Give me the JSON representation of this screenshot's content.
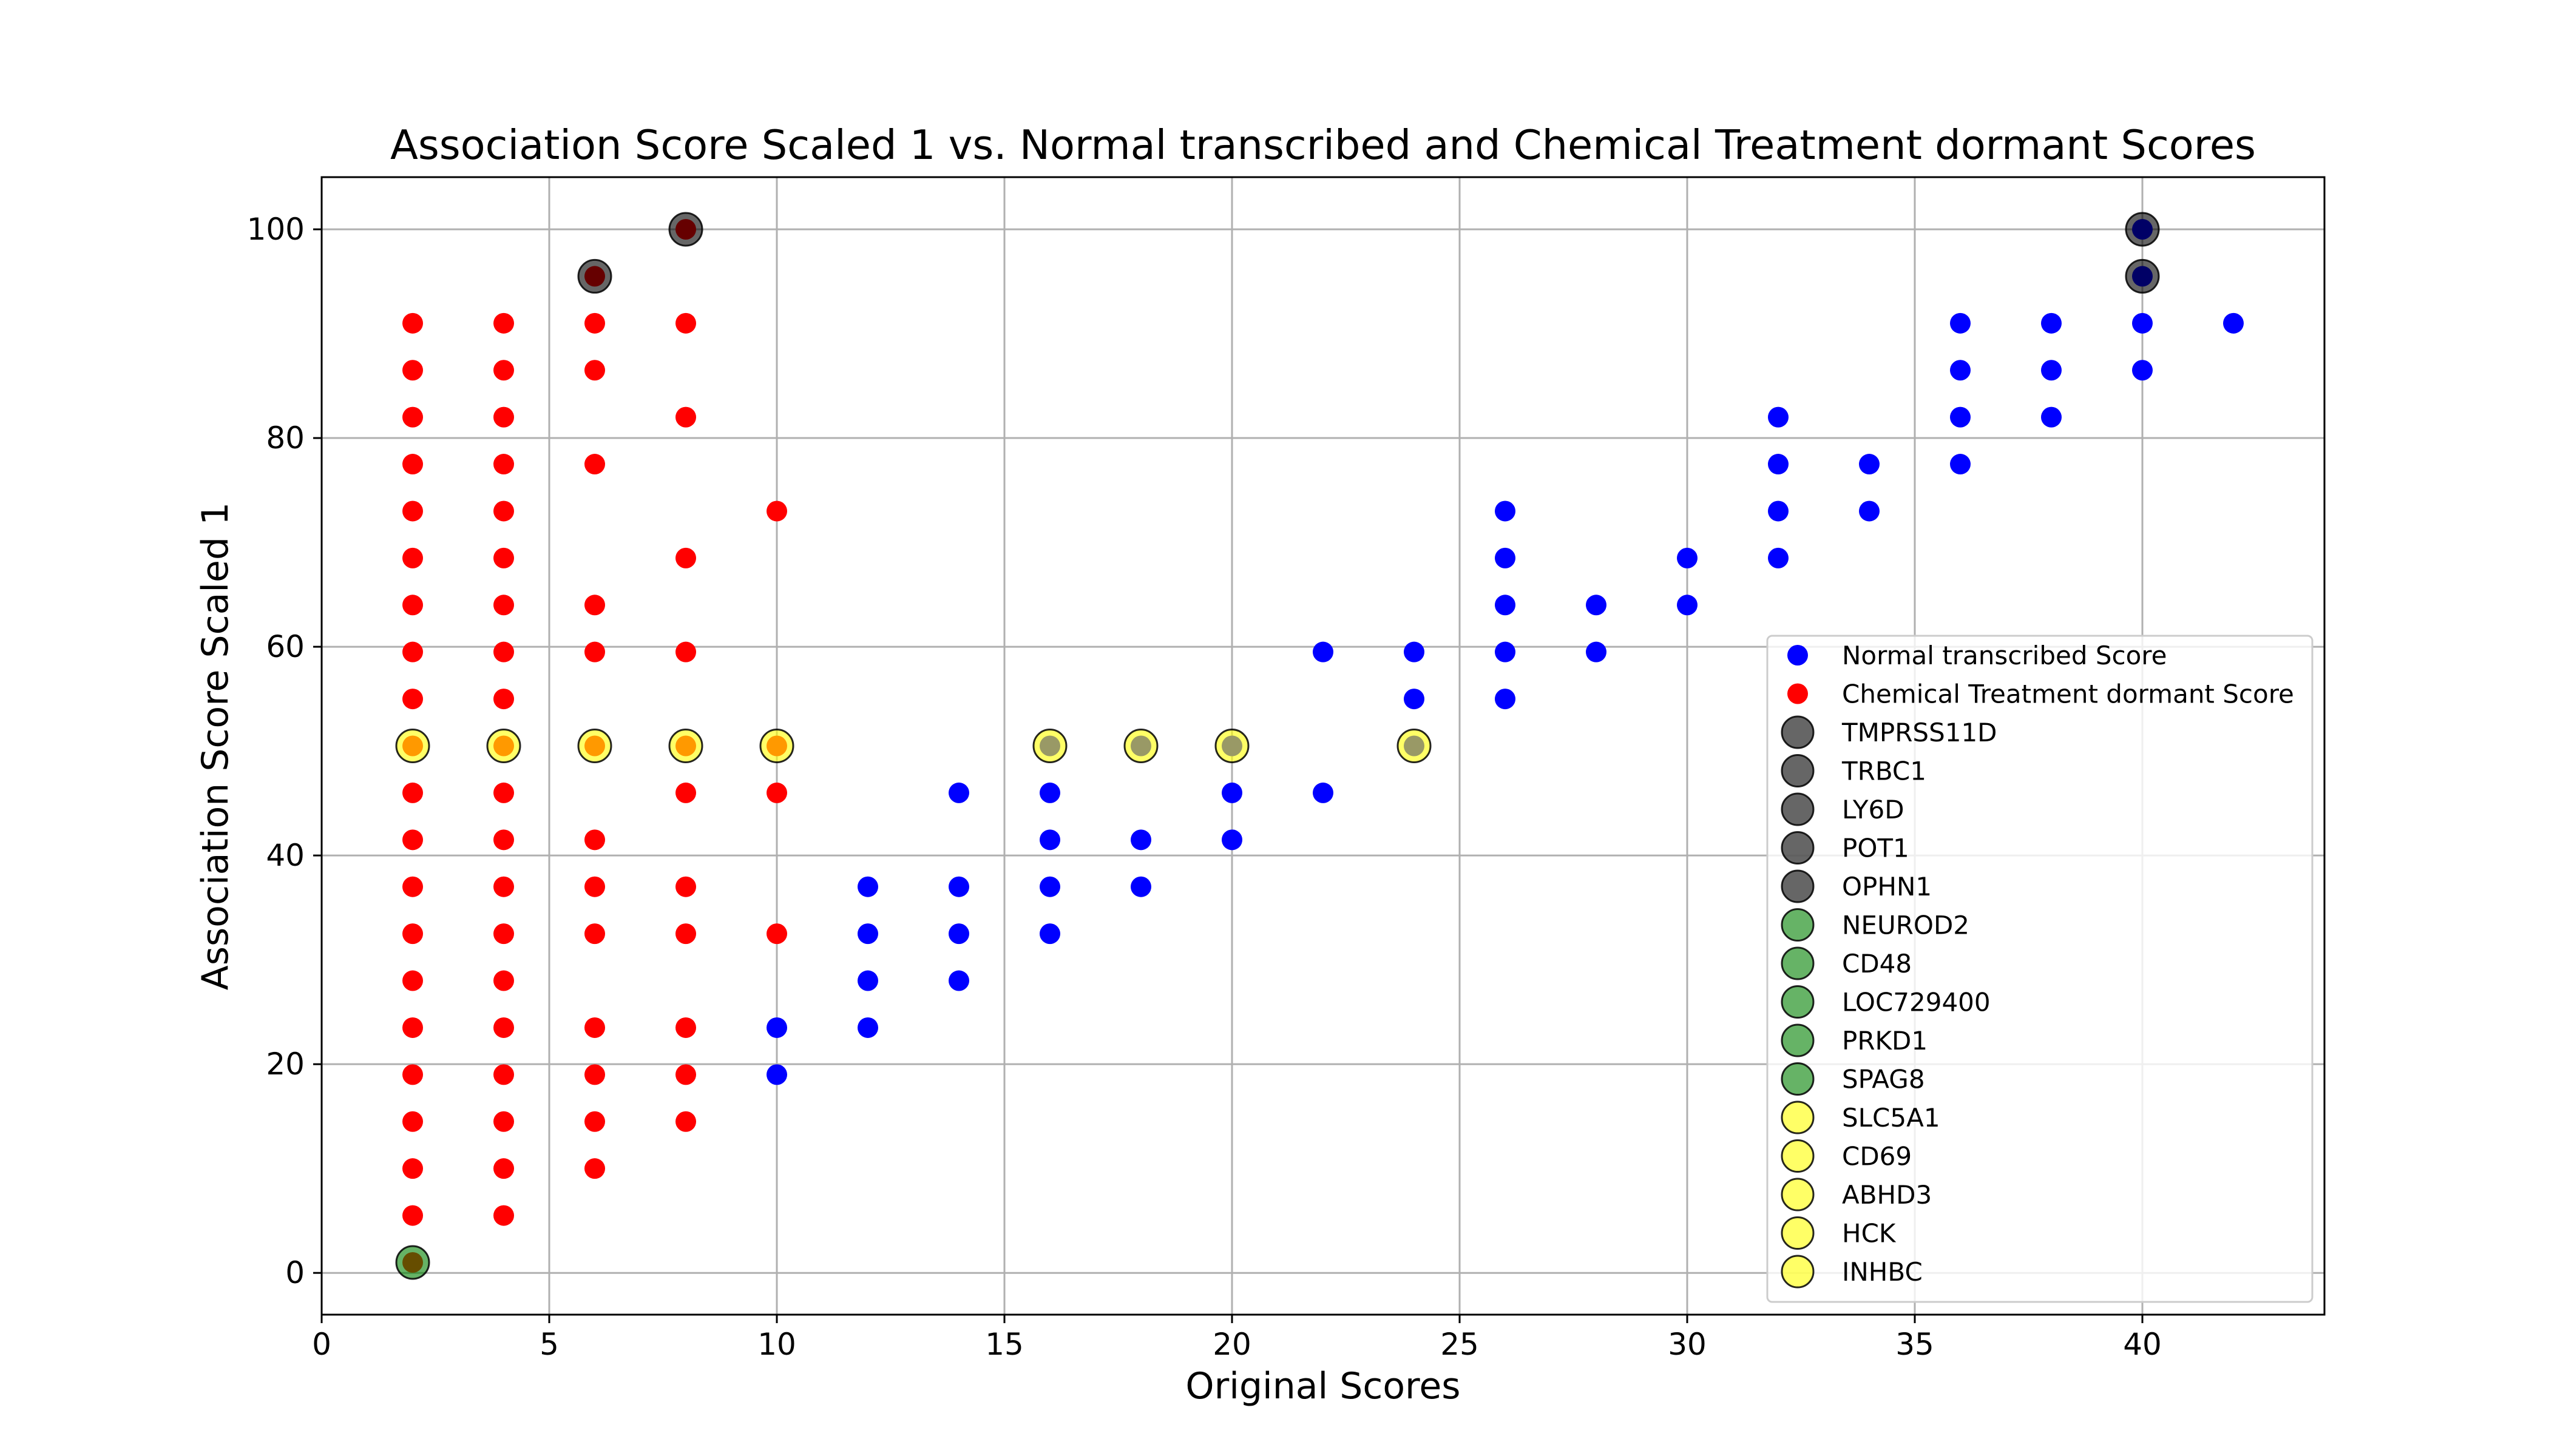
{
  "chart_data": {
    "type": "scatter",
    "title": "Association Score Scaled 1 vs. Normal transcribed and Chemical Treatment dormant Scores",
    "xlabel": "Original Scores",
    "ylabel": "Association Score Scaled 1",
    "xlim": [
      0,
      44
    ],
    "ylim": [
      -4,
      105
    ],
    "xticks": [
      0,
      5,
      10,
      15,
      20,
      25,
      30,
      35,
      40
    ],
    "yticks": [
      0,
      20,
      40,
      60,
      80,
      100
    ],
    "grid": true,
    "legend_position": "lower-right",
    "series": [
      {
        "name": "Normal transcribed Score",
        "color": "#0000ff",
        "points": [
          [
            10,
            19
          ],
          [
            10,
            23.5
          ],
          [
            12,
            23.5
          ],
          [
            12,
            28
          ],
          [
            12,
            32.5
          ],
          [
            12,
            37
          ],
          [
            14,
            28
          ],
          [
            14,
            32.5
          ],
          [
            14,
            37
          ],
          [
            14,
            46
          ],
          [
            16,
            32.5
          ],
          [
            16,
            37
          ],
          [
            16,
            41.5
          ],
          [
            16,
            46
          ],
          [
            18,
            37
          ],
          [
            18,
            41.5
          ],
          [
            20,
            41.5
          ],
          [
            20,
            46
          ],
          [
            22,
            46
          ],
          [
            22,
            59.5
          ],
          [
            24,
            55
          ],
          [
            24,
            59.5
          ],
          [
            26,
            55
          ],
          [
            26,
            59.5
          ],
          [
            26,
            64
          ],
          [
            26,
            68.5
          ],
          [
            26,
            73
          ],
          [
            28,
            59.5
          ],
          [
            28,
            64
          ],
          [
            30,
            64
          ],
          [
            30,
            68.5
          ],
          [
            32,
            68.5
          ],
          [
            32,
            73
          ],
          [
            32,
            77.5
          ],
          [
            32,
            82
          ],
          [
            34,
            73
          ],
          [
            34,
            77.5
          ],
          [
            36,
            77.5
          ],
          [
            36,
            82
          ],
          [
            36,
            86.5
          ],
          [
            36,
            91
          ],
          [
            38,
            82
          ],
          [
            38,
            86.5
          ],
          [
            38,
            91
          ],
          [
            40,
            86.5
          ],
          [
            40,
            91
          ],
          [
            42,
            91
          ]
        ]
      },
      {
        "name": "Chemical Treatment dormant Score",
        "color": "#ff0000",
        "points": [
          [
            2,
            5.5
          ],
          [
            2,
            10
          ],
          [
            2,
            14.5
          ],
          [
            2,
            19
          ],
          [
            2,
            23.5
          ],
          [
            2,
            28
          ],
          [
            2,
            32.5
          ],
          [
            2,
            37
          ],
          [
            2,
            41.5
          ],
          [
            2,
            46
          ],
          [
            2,
            55
          ],
          [
            2,
            59.5
          ],
          [
            2,
            64
          ],
          [
            2,
            68.5
          ],
          [
            2,
            73
          ],
          [
            2,
            77.5
          ],
          [
            2,
            82
          ],
          [
            2,
            86.5
          ],
          [
            2,
            91
          ],
          [
            4,
            5.5
          ],
          [
            4,
            10
          ],
          [
            4,
            14.5
          ],
          [
            4,
            19
          ],
          [
            4,
            23.5
          ],
          [
            4,
            28
          ],
          [
            4,
            32.5
          ],
          [
            4,
            37
          ],
          [
            4,
            41.5
          ],
          [
            4,
            46
          ],
          [
            4,
            55
          ],
          [
            4,
            59.5
          ],
          [
            4,
            64
          ],
          [
            4,
            68.5
          ],
          [
            4,
            73
          ],
          [
            4,
            77.5
          ],
          [
            4,
            82
          ],
          [
            4,
            86.5
          ],
          [
            4,
            91
          ],
          [
            6,
            10
          ],
          [
            6,
            14.5
          ],
          [
            6,
            19
          ],
          [
            6,
            23.5
          ],
          [
            6,
            32.5
          ],
          [
            6,
            37
          ],
          [
            6,
            41.5
          ],
          [
            6,
            59.5
          ],
          [
            6,
            64
          ],
          [
            6,
            77.5
          ],
          [
            6,
            86.5
          ],
          [
            6,
            91
          ],
          [
            8,
            14.5
          ],
          [
            8,
            19
          ],
          [
            8,
            23.5
          ],
          [
            8,
            32.5
          ],
          [
            8,
            37
          ],
          [
            8,
            46
          ],
          [
            8,
            59.5
          ],
          [
            8,
            68.5
          ],
          [
            8,
            82
          ],
          [
            8,
            91
          ],
          [
            10,
            32.5
          ],
          [
            10,
            46
          ],
          [
            10,
            73
          ]
        ]
      }
    ],
    "highlight_legend": [
      {
        "name": "TMPRSS11D",
        "color": "#000000"
      },
      {
        "name": "TRBC1",
        "color": "#000000"
      },
      {
        "name": "LY6D",
        "color": "#000000"
      },
      {
        "name": "POT1",
        "color": "#000000"
      },
      {
        "name": "OPHN1",
        "color": "#000000"
      },
      {
        "name": "NEUROD2",
        "color": "#008000"
      },
      {
        "name": "CD48",
        "color": "#008000"
      },
      {
        "name": "LOC729400",
        "color": "#008000"
      },
      {
        "name": "PRKD1",
        "color": "#008000"
      },
      {
        "name": "SPAG8",
        "color": "#008000"
      },
      {
        "name": "SLC5A1",
        "color": "#ffff00"
      },
      {
        "name": "CD69",
        "color": "#ffff00"
      },
      {
        "name": "ABHD3",
        "color": "#ffff00"
      },
      {
        "name": "HCK",
        "color": "#ffff00"
      },
      {
        "name": "INHBC",
        "color": "#ffff00"
      }
    ],
    "highlight_points": [
      {
        "x": 6,
        "y": 95.5,
        "color": "#000000",
        "underlay": "#ff0000"
      },
      {
        "x": 8,
        "y": 100,
        "color": "#000000",
        "underlay": "#ff0000"
      },
      {
        "x": 40,
        "y": 100,
        "color": "#000000",
        "underlay": "#0000ff"
      },
      {
        "x": 40,
        "y": 95.5,
        "color": "#000000",
        "underlay": "#0000ff"
      },
      {
        "x": 2,
        "y": 1,
        "color": "#008000",
        "underlay": "#ff0000"
      },
      {
        "x": 2,
        "y": 50.5,
        "color": "#ffff00",
        "underlay": "#ff0000"
      },
      {
        "x": 4,
        "y": 50.5,
        "color": "#ffff00",
        "underlay": "#ff0000"
      },
      {
        "x": 6,
        "y": 50.5,
        "color": "#ffff00",
        "underlay": "#ff0000"
      },
      {
        "x": 8,
        "y": 50.5,
        "color": "#ffff00",
        "underlay": "#ff0000"
      },
      {
        "x": 10,
        "y": 50.5,
        "color": "#ffff00",
        "underlay": "#ff0000"
      },
      {
        "x": 16,
        "y": 50.5,
        "color": "#ffff00",
        "underlay": "#0000ff"
      },
      {
        "x": 18,
        "y": 50.5,
        "color": "#ffff00",
        "underlay": "#0000ff"
      },
      {
        "x": 20,
        "y": 50.5,
        "color": "#ffff00",
        "underlay": "#0000ff"
      },
      {
        "x": 24,
        "y": 50.5,
        "color": "#ffff00",
        "underlay": "#0000ff"
      }
    ]
  }
}
